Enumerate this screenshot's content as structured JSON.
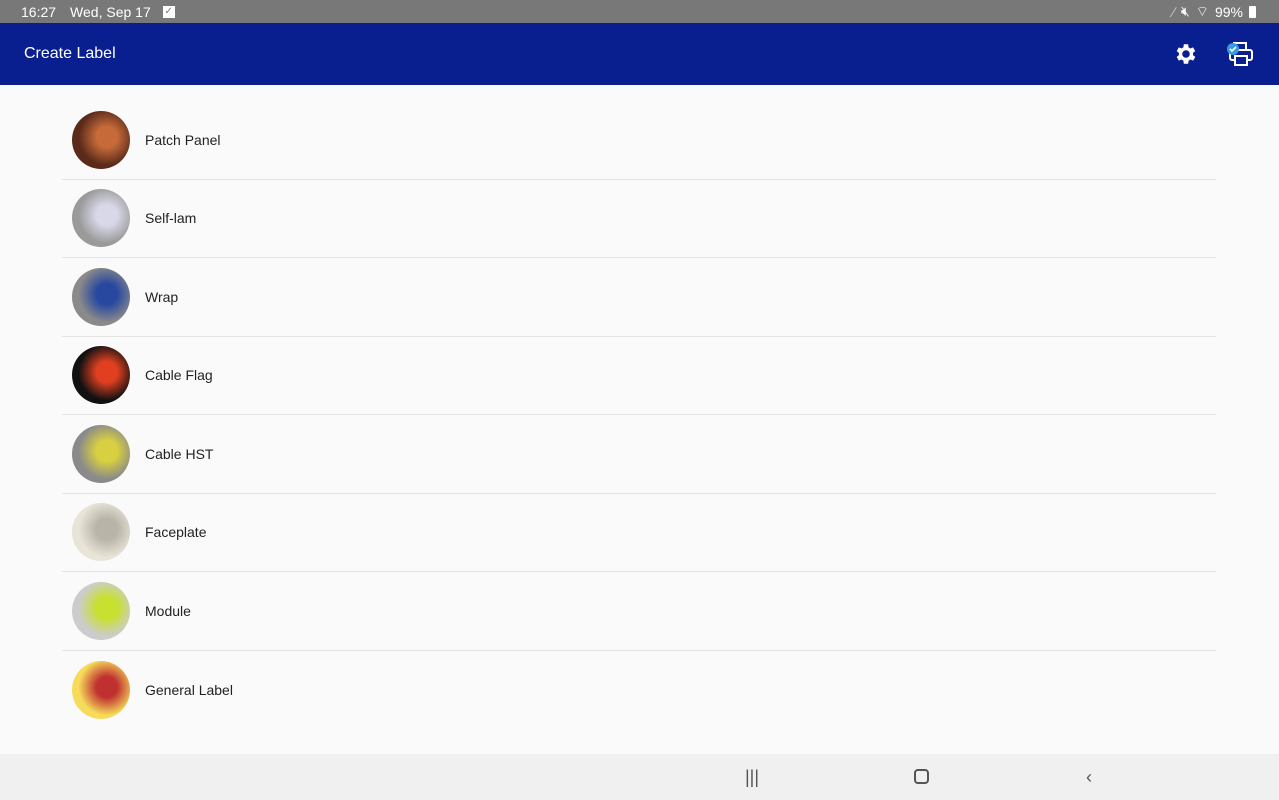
{
  "status_bar": {
    "time": "16:27",
    "date": "Wed, Sep 17",
    "battery": "99%",
    "icons": [
      "checkbox-notification-icon",
      "pen-icon",
      "mute-icon",
      "wifi-icon",
      "battery-icon"
    ]
  },
  "app_bar": {
    "title": "Create Label",
    "icons": [
      "gear-icon",
      "printer-connected-icon"
    ]
  },
  "items": [
    {
      "label": "Patch Panel",
      "colors": [
        "#5a2a1a",
        "#c66a3a"
      ]
    },
    {
      "label": "Self-lam",
      "colors": [
        "#9a9a9a",
        "#d8d8e8"
      ]
    },
    {
      "label": "Wrap",
      "colors": [
        "#8a8a8a",
        "#2848a0"
      ]
    },
    {
      "label": "Cable Flag",
      "colors": [
        "#111111",
        "#e04020"
      ]
    },
    {
      "label": "Cable HST",
      "colors": [
        "#8a8a8a",
        "#d8d040"
      ]
    },
    {
      "label": "Faceplate",
      "colors": [
        "#e8e4d8",
        "#b8b4a8"
      ]
    },
    {
      "label": "Module",
      "colors": [
        "#cccccc",
        "#c8e030"
      ]
    },
    {
      "label": "General Label",
      "colors": [
        "#f6dc5a",
        "#c03030"
      ]
    }
  ],
  "nav_bar": {
    "icons": [
      "recent-apps-icon",
      "home-icon",
      "back-icon"
    ]
  }
}
